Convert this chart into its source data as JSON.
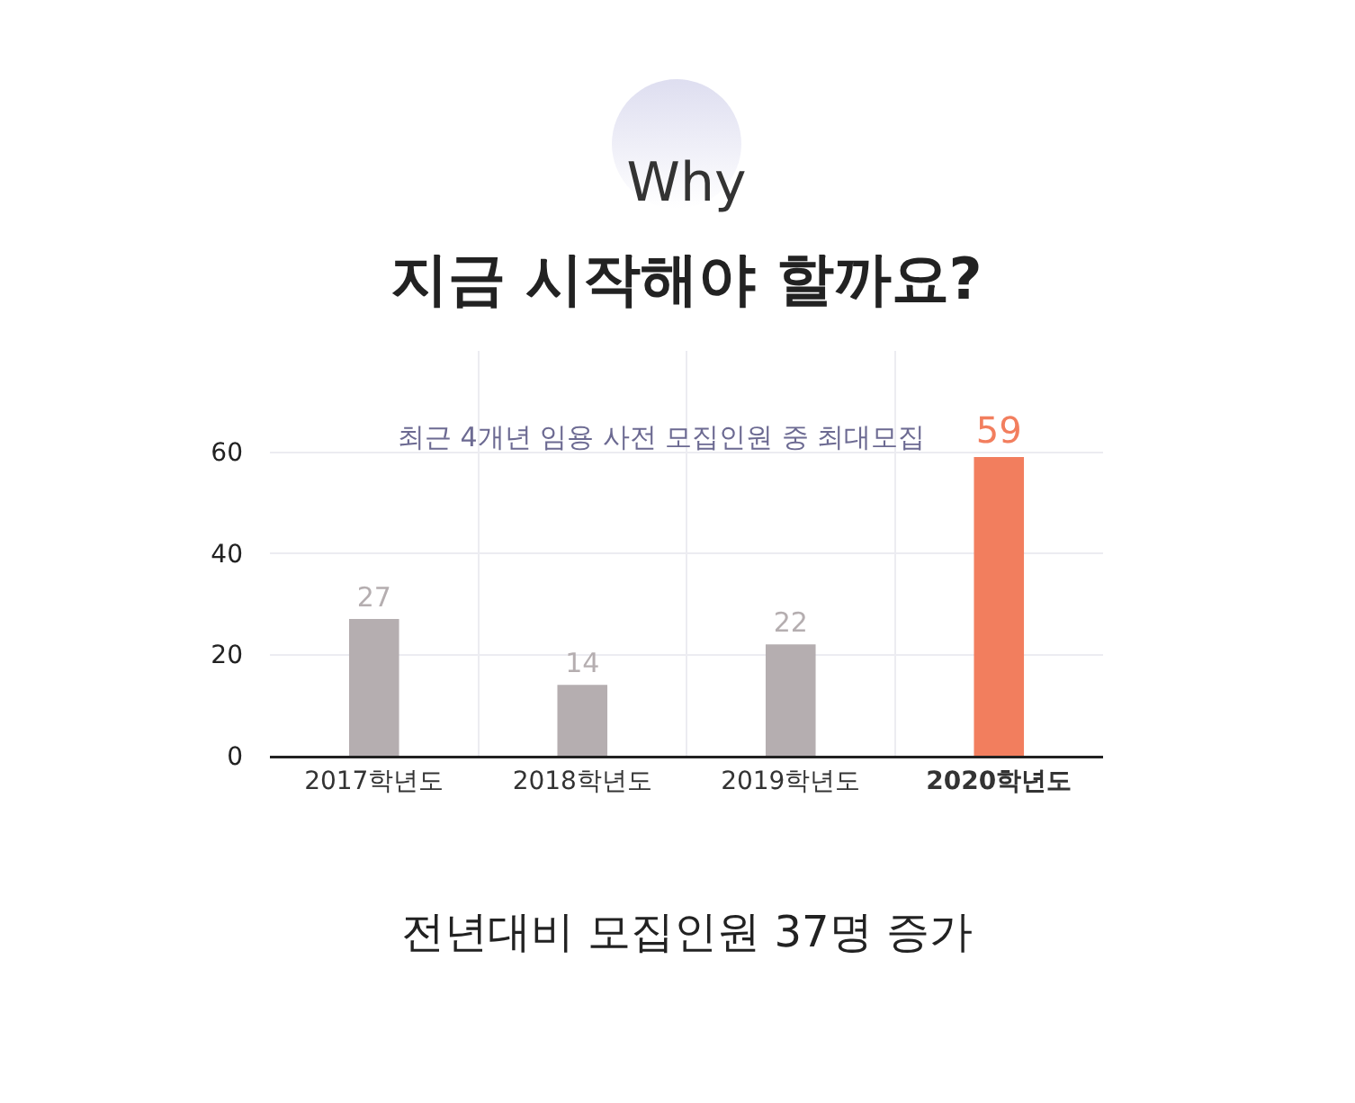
{
  "chart_data": {
    "type": "bar",
    "title": "Why",
    "subtitle": "지금 시작해야 할까요?",
    "categories": [
      "2017학년도",
      "2018학년도",
      "2019학년도",
      "2020학년도"
    ],
    "values": [
      27,
      14,
      22,
      59
    ],
    "colors": [
      "#b5aeb0",
      "#b5aeb0",
      "#b5aeb0",
      "#f27e5e"
    ],
    "ylim": [
      0,
      80
    ],
    "yticks": [
      0,
      20,
      40,
      60
    ],
    "grid": true,
    "data_labels": true,
    "annotations": [
      "최근 4개년 임용 사전 모집인원 중 최대모집",
      "전년대비 모집인원 37명 증가"
    ]
  }
}
